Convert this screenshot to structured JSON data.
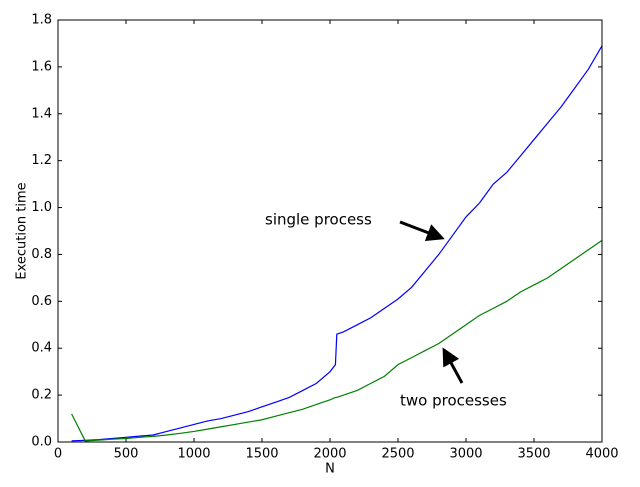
{
  "chart_data": {
    "type": "line",
    "x_label": "N",
    "y_label": "Execution time",
    "x": [
      100,
      200,
      300,
      400,
      500,
      600,
      700,
      800,
      900,
      1000,
      1100,
      1200,
      1300,
      1400,
      1500,
      1600,
      1700,
      1800,
      1900,
      2000,
      2040,
      2050,
      2100,
      2200,
      2300,
      2400,
      2500,
      2600,
      2700,
      2800,
      2900,
      3000,
      3100,
      3200,
      3300,
      3400,
      3500,
      3600,
      3700,
      3800,
      3900,
      4000
    ],
    "series": [
      {
        "name": "single process",
        "color": "#0000ff",
        "values": [
          0.005,
          0.007,
          0.01,
          0.015,
          0.02,
          0.025,
          0.03,
          0.045,
          0.06,
          0.075,
          0.09,
          0.1,
          0.115,
          0.13,
          0.15,
          0.17,
          0.19,
          0.22,
          0.25,
          0.3,
          0.33,
          0.46,
          0.47,
          0.5,
          0.53,
          0.57,
          0.61,
          0.66,
          0.73,
          0.8,
          0.88,
          0.96,
          1.02,
          1.1,
          1.15,
          1.22,
          1.29,
          1.36,
          1.43,
          1.51,
          1.59,
          1.69
        ]
      },
      {
        "name": "two processes",
        "color": "#008000",
        "values": [
          0.12,
          0.005,
          0.008,
          0.012,
          0.015,
          0.02,
          0.024,
          0.03,
          0.037,
          0.045,
          0.055,
          0.065,
          0.075,
          0.085,
          0.095,
          0.11,
          0.125,
          0.14,
          0.16,
          0.18,
          0.19,
          0.19,
          0.2,
          0.22,
          0.25,
          0.28,
          0.33,
          0.36,
          0.39,
          0.42,
          0.46,
          0.5,
          0.54,
          0.57,
          0.6,
          0.64,
          0.67,
          0.7,
          0.74,
          0.78,
          0.82,
          0.86
        ]
      }
    ],
    "xlim": [
      0,
      4000
    ],
    "xticks": [
      0,
      500,
      1000,
      1500,
      2000,
      2500,
      3000,
      3500,
      4000
    ],
    "ylim": [
      0,
      1.8
    ],
    "yticks": [
      {
        "value": 0,
        "label": "0.0"
      },
      0.2,
      0.4,
      0.6,
      0.8,
      {
        "value": 1,
        "label": "1.0"
      },
      1.2,
      1.4,
      1.6,
      1.8
    ],
    "grid": false
  }
}
